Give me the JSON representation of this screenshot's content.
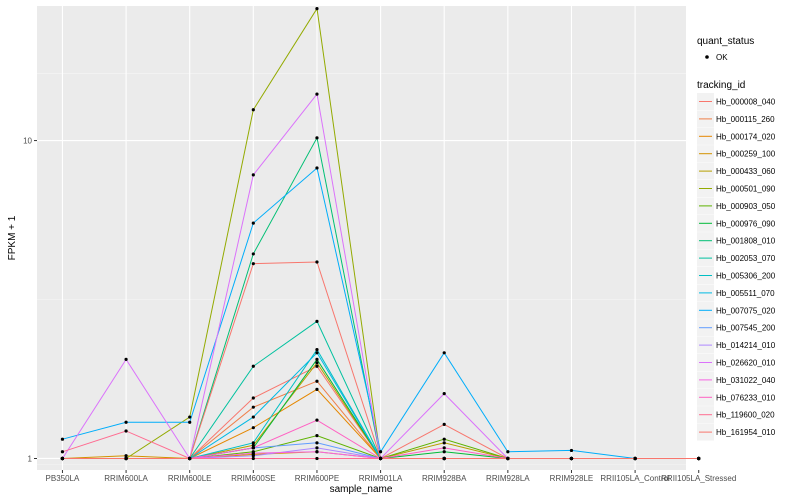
{
  "chart_data": {
    "type": "line",
    "title": "",
    "xlabel": "sample_name",
    "ylabel": "FPKM + 1",
    "y_scale": "log10",
    "ylim": [
      0.92,
      26.5
    ],
    "yticks": [
      1,
      10
    ],
    "ytick_labels": [
      "1",
      "10"
    ],
    "categories": [
      "PB350LA",
      "RRIM600LA",
      "RRIM600LE",
      "RRIM600SE",
      "RRIM600PE",
      "RRIM901LA",
      "RRIM928BA",
      "RRIM928LA",
      "RRIM928LE",
      "RRII105LA_Control",
      "RRII105LA_Stressed"
    ],
    "legend_quant": {
      "title": "quant_status",
      "entries": [
        "OK"
      ]
    },
    "legend_tracking": {
      "title": "tracking_id"
    },
    "series": [
      {
        "name": "Hb_000008_040",
        "color": "#F8766D",
        "values": [
          1.0,
          1.0,
          1.0,
          1.55,
          1.95,
          1.0,
          1.28,
          1.0,
          1.0,
          1.0,
          1.0
        ]
      },
      {
        "name": "Hb_000115_260",
        "color": "#EF7F49",
        "values": [
          1.0,
          1.0,
          1.0,
          1.45,
          1.75,
          1.0,
          1.0,
          1.0,
          1.0,
          1.0,
          1.0
        ]
      },
      {
        "name": "Hb_000174_020",
        "color": "#E58700",
        "values": [
          1.0,
          1.0,
          1.0,
          1.25,
          1.65,
          1.0,
          1.0,
          1.0,
          1.0,
          1.0,
          1.0
        ]
      },
      {
        "name": "Hb_000259_100",
        "color": "#D39200",
        "values": [
          1.0,
          1.02,
          1.0,
          1.03,
          1.05,
          1.0,
          1.0,
          1.0,
          1.0,
          1.0,
          1.0
        ]
      },
      {
        "name": "Hb_000433_060",
        "color": "#B79F00",
        "values": [
          1.0,
          1.0,
          1.0,
          1.1,
          2.0,
          1.0,
          1.12,
          1.0,
          1.0,
          1.0,
          1.0
        ]
      },
      {
        "name": "Hb_000501_090",
        "color": "#93AA00",
        "values": [
          1.0,
          1.0,
          1.35,
          12.5,
          26.0,
          1.0,
          1.0,
          1.0,
          1.0,
          1.0,
          1.0
        ]
      },
      {
        "name": "Hb_000903_050",
        "color": "#5EB300",
        "values": [
          1.0,
          1.0,
          1.0,
          1.05,
          1.18,
          1.0,
          1.15,
          1.0,
          1.0,
          1.0,
          1.0
        ]
      },
      {
        "name": "Hb_000976_090",
        "color": "#00BA38",
        "values": [
          1.0,
          1.0,
          1.0,
          1.08,
          2.05,
          1.0,
          1.05,
          1.0,
          1.0,
          1.0,
          1.0
        ]
      },
      {
        "name": "Hb_001808_010",
        "color": "#00BF74",
        "values": [
          1.0,
          1.0,
          1.0,
          4.4,
          10.2,
          1.0,
          1.0,
          1.0,
          1.0,
          1.0,
          1.0
        ]
      },
      {
        "name": "Hb_002053_070",
        "color": "#00C19F",
        "values": [
          1.0,
          1.0,
          1.0,
          1.95,
          2.7,
          1.0,
          1.0,
          1.0,
          1.0,
          1.0,
          1.0
        ]
      },
      {
        "name": "Hb_005306_200",
        "color": "#00BFC4",
        "values": [
          1.0,
          1.0,
          1.0,
          1.12,
          2.2,
          1.0,
          1.0,
          1.0,
          1.0,
          1.0,
          1.0
        ]
      },
      {
        "name": "Hb_005511_070",
        "color": "#00B9E3",
        "values": [
          1.0,
          1.0,
          1.0,
          1.35,
          2.15,
          1.0,
          1.0,
          1.0,
          1.0,
          1.0,
          1.0
        ]
      },
      {
        "name": "Hb_007075_020",
        "color": "#00ADFA",
        "values": [
          1.15,
          1.3,
          1.3,
          5.5,
          8.2,
          1.05,
          2.15,
          1.05,
          1.06,
          1.0,
          1.0
        ]
      },
      {
        "name": "Hb_007545_200",
        "color": "#619CFF",
        "values": [
          1.0,
          1.0,
          1.0,
          1.08,
          1.12,
          1.0,
          1.0,
          1.0,
          1.0,
          1.0,
          1.0
        ]
      },
      {
        "name": "Hb_014214_010",
        "color": "#AE87FF",
        "values": [
          1.0,
          1.0,
          1.0,
          1.02,
          1.08,
          1.0,
          1.0,
          1.0,
          1.0,
          1.0,
          1.0
        ]
      },
      {
        "name": "Hb_026620_010",
        "color": "#DB72FB",
        "values": [
          1.0,
          2.05,
          1.0,
          7.8,
          14.0,
          1.0,
          1.6,
          1.0,
          1.0,
          1.0,
          1.0
        ]
      },
      {
        "name": "Hb_031022_040",
        "color": "#F564E3",
        "values": [
          1.0,
          1.0,
          1.0,
          1.04,
          1.05,
          1.0,
          1.0,
          1.0,
          1.0,
          1.0,
          1.0
        ]
      },
      {
        "name": "Hb_076233_010",
        "color": "#FF61C3",
        "values": [
          1.0,
          1.0,
          1.0,
          1.08,
          1.32,
          1.0,
          1.08,
          1.0,
          1.0,
          1.0,
          1.0
        ]
      },
      {
        "name": "Hb_119600_020",
        "color": "#FF6C91",
        "values": [
          1.05,
          1.22,
          1.0,
          1.0,
          1.0,
          1.0,
          1.0,
          1.0,
          1.0,
          1.0,
          1.0
        ]
      },
      {
        "name": "Hb_161954_010",
        "color": "#F8766D",
        "values": [
          1.0,
          1.0,
          1.0,
          4.1,
          4.15,
          1.0,
          1.0,
          1.0,
          1.0,
          1.0,
          1.0
        ]
      }
    ]
  }
}
